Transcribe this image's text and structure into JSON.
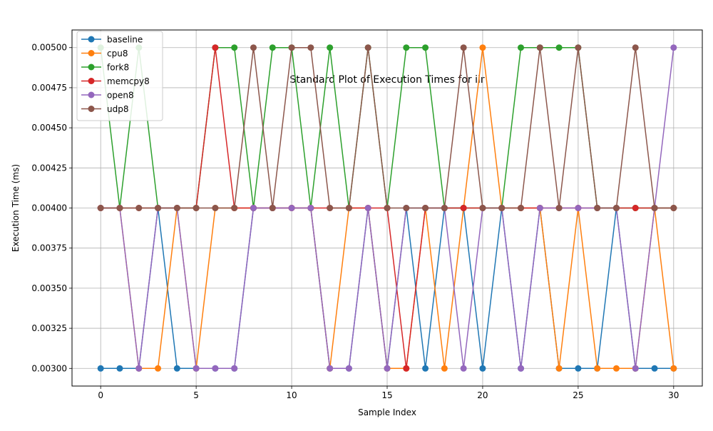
{
  "chart_data": {
    "type": "line",
    "title": "Standard Plot of Execution Times for iir",
    "xlabel": "Sample Index",
    "ylabel": "Execution Time (ms)",
    "xlim": [
      -1.5,
      31.5
    ],
    "ylim": [
      0.00289,
      0.00511
    ],
    "x_ticks": [
      0,
      5,
      10,
      15,
      20,
      25,
      30
    ],
    "x_tick_labels": [
      "0",
      "5",
      "10",
      "15",
      "20",
      "25",
      "30"
    ],
    "y_ticks": [
      0.003,
      0.00325,
      0.0035,
      0.00375,
      0.004,
      0.00425,
      0.0045,
      0.00475,
      0.005
    ],
    "y_tick_labels": [
      "0.00300",
      "0.00325",
      "0.00350",
      "0.00375",
      "0.00400",
      "0.00425",
      "0.00450",
      "0.00475",
      "0.00500"
    ],
    "grid": true,
    "legend_position": "top-left",
    "x": [
      0,
      1,
      2,
      3,
      4,
      5,
      6,
      7,
      8,
      9,
      10,
      11,
      12,
      13,
      14,
      15,
      16,
      17,
      18,
      19,
      20,
      21,
      22,
      23,
      24,
      25,
      26,
      27,
      28,
      29,
      30
    ],
    "series": [
      {
        "name": "baseline",
        "color": "#1f77b4",
        "values": [
          0.003,
          0.003,
          0.003,
          0.004,
          0.003,
          0.003,
          0.003,
          0.003,
          0.004,
          0.004,
          0.004,
          0.004,
          0.003,
          0.003,
          0.004,
          0.003,
          0.004,
          0.003,
          0.004,
          0.004,
          0.003,
          0.004,
          0.003,
          0.004,
          0.003,
          0.003,
          0.003,
          0.004,
          0.003,
          0.003,
          0.003
        ]
      },
      {
        "name": "cpu8",
        "color": "#ff7f0e",
        "values": [
          0.004,
          0.004,
          0.003,
          0.003,
          0.004,
          0.003,
          0.004,
          0.004,
          0.004,
          0.004,
          0.004,
          0.004,
          0.003,
          0.004,
          0.004,
          0.003,
          0.003,
          0.004,
          0.003,
          0.004,
          0.005,
          0.004,
          0.004,
          0.004,
          0.003,
          0.004,
          0.003,
          0.003,
          0.003,
          0.004,
          0.003
        ]
      },
      {
        "name": "fork8",
        "color": "#2ca02c",
        "values": [
          0.005,
          0.004,
          0.005,
          0.004,
          0.004,
          0.004,
          0.005,
          0.005,
          0.004,
          0.005,
          0.005,
          0.004,
          0.005,
          0.004,
          0.005,
          0.004,
          0.005,
          0.005,
          0.004,
          0.004,
          0.004,
          0.004,
          0.005,
          0.005,
          0.005,
          0.005,
          0.004,
          0.004,
          0.004,
          0.004,
          0.004
        ]
      },
      {
        "name": "memcpy8",
        "color": "#d62728",
        "values": [
          0.004,
          0.004,
          0.004,
          0.004,
          0.004,
          0.004,
          0.005,
          0.004,
          0.004,
          0.004,
          0.004,
          0.004,
          0.004,
          0.004,
          0.004,
          0.004,
          0.003,
          0.004,
          0.004,
          0.004,
          0.004,
          0.004,
          0.004,
          0.004,
          0.004,
          0.004,
          0.004,
          0.004,
          0.004,
          0.004,
          0.004
        ]
      },
      {
        "name": "open8",
        "color": "#9467bd",
        "values": [
          0.004,
          0.004,
          0.003,
          0.004,
          0.004,
          0.003,
          0.003,
          0.003,
          0.004,
          0.004,
          0.004,
          0.004,
          0.003,
          0.003,
          0.004,
          0.003,
          0.004,
          0.004,
          0.004,
          0.003,
          0.004,
          0.004,
          0.003,
          0.004,
          0.004,
          0.004,
          0.004,
          0.004,
          0.003,
          0.004,
          0.005
        ]
      },
      {
        "name": "udp8",
        "color": "#8c564b",
        "values": [
          0.004,
          0.004,
          0.004,
          0.004,
          0.004,
          0.004,
          0.004,
          0.004,
          0.005,
          0.004,
          0.005,
          0.005,
          0.004,
          0.004,
          0.005,
          0.004,
          0.004,
          0.004,
          0.004,
          0.005,
          0.004,
          0.004,
          0.004,
          0.005,
          0.004,
          0.005,
          0.004,
          0.004,
          0.005,
          0.004,
          0.004
        ]
      }
    ]
  }
}
